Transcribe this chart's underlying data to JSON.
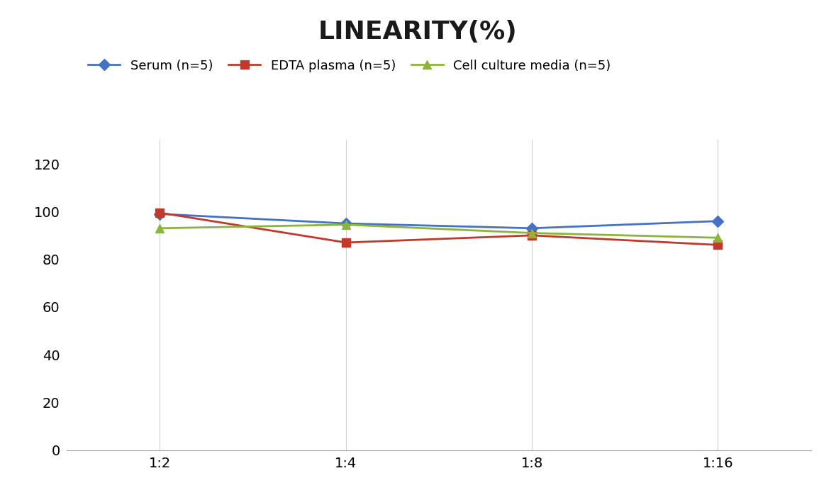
{
  "title": "LINEARITY(%)",
  "x_labels": [
    "1:2",
    "1:4",
    "1:8",
    "1:16"
  ],
  "series": [
    {
      "label": "Serum (n=5)",
      "values": [
        99.0,
        95.0,
        93.0,
        96.0
      ],
      "color": "#4472C4",
      "marker": "D",
      "markersize": 8,
      "linewidth": 2.0
    },
    {
      "label": "EDTA plasma (n=5)",
      "values": [
        99.5,
        87.0,
        90.0,
        86.0
      ],
      "color": "#C0392B",
      "marker": "s",
      "markersize": 8,
      "linewidth": 2.0
    },
    {
      "label": "Cell culture media (n=5)",
      "values": [
        93.0,
        94.5,
        91.0,
        89.0
      ],
      "color": "#8DB43A",
      "marker": "^",
      "markersize": 8,
      "linewidth": 2.0
    }
  ],
  "ylim": [
    0,
    130
  ],
  "yticks": [
    0,
    20,
    40,
    60,
    80,
    100,
    120
  ],
  "grid_color": "#D0D0D0",
  "background_color": "#FFFFFF",
  "title_fontsize": 26,
  "legend_fontsize": 13,
  "tick_fontsize": 14
}
